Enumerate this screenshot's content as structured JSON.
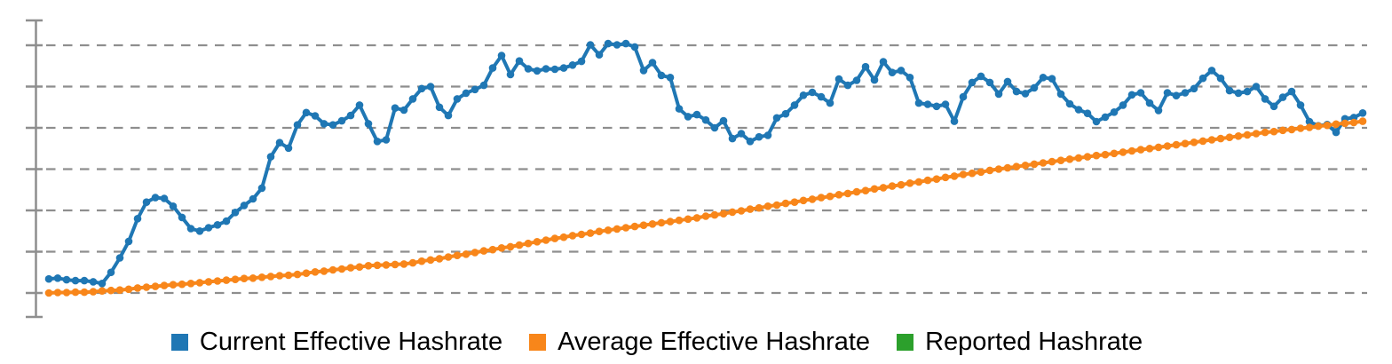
{
  "chart_data": {
    "type": "line",
    "title": "",
    "x_axis": {
      "tick_labels": [],
      "labels_visible": false
    },
    "y_axis": {
      "tick_labels": [],
      "labels_visible": false,
      "gridline_values": [
        0,
        1,
        2,
        3,
        4,
        5,
        6
      ],
      "ylim": [
        -0.58,
        6.6
      ],
      "note": "axis shows only ticks, no numeric labels; series values are in gridline units measured from the bottom dashed gridline"
    },
    "grid": {
      "style": "dashed",
      "color": "#8e8e8e",
      "horizontal_lines": 7
    },
    "legend_position": "bottom-center",
    "marker": "circle",
    "series": [
      {
        "name": "Current Effective Hashrate",
        "color": "#1f77b4",
        "visible": true,
        "values": [
          0.34,
          0.36,
          0.32,
          0.3,
          0.3,
          0.27,
          0.23,
          0.5,
          0.85,
          1.25,
          1.8,
          2.2,
          2.31,
          2.29,
          2.1,
          1.83,
          1.56,
          1.5,
          1.58,
          1.65,
          1.74,
          1.95,
          2.12,
          2.28,
          2.54,
          3.3,
          3.64,
          3.51,
          4.07,
          4.37,
          4.29,
          4.1,
          4.07,
          4.17,
          4.3,
          4.55,
          4.1,
          3.67,
          3.71,
          4.48,
          4.43,
          4.7,
          4.95,
          5.0,
          4.5,
          4.3,
          4.7,
          4.84,
          4.93,
          5.03,
          5.45,
          5.75,
          5.29,
          5.62,
          5.43,
          5.38,
          5.43,
          5.42,
          5.45,
          5.52,
          5.61,
          6.01,
          5.77,
          6.04,
          6.01,
          6.04,
          5.96,
          5.39,
          5.58,
          5.27,
          5.22,
          4.46,
          4.27,
          4.32,
          4.19,
          4.0,
          4.17,
          3.74,
          3.86,
          3.67,
          3.78,
          3.82,
          4.24,
          4.34,
          4.55,
          4.79,
          4.86,
          4.75,
          4.6,
          5.18,
          5.03,
          5.15,
          5.48,
          5.16,
          5.6,
          5.34,
          5.39,
          5.22,
          4.6,
          4.57,
          4.52,
          4.57,
          4.16,
          4.75,
          5.1,
          5.25,
          5.1,
          4.82,
          5.12,
          4.88,
          4.83,
          4.97,
          5.22,
          5.19,
          4.82,
          4.58,
          4.44,
          4.35,
          4.15,
          4.26,
          4.38,
          4.55,
          4.8,
          4.85,
          4.6,
          4.42,
          4.85,
          4.78,
          4.85,
          4.95,
          5.2,
          5.39,
          5.2,
          4.9,
          4.84,
          4.88,
          5.0,
          4.7,
          4.52,
          4.74,
          4.88,
          4.55,
          4.15,
          4.05,
          4.08,
          3.89,
          4.22,
          4.25,
          4.36
        ]
      },
      {
        "name": "Average Effective Hashrate",
        "color": "#f8861a",
        "visible": true,
        "values": [
          0.0,
          0.01,
          0.01,
          0.02,
          0.02,
          0.03,
          0.05,
          0.06,
          0.07,
          0.09,
          0.12,
          0.14,
          0.16,
          0.18,
          0.2,
          0.21,
          0.23,
          0.25,
          0.27,
          0.29,
          0.31,
          0.33,
          0.35,
          0.36,
          0.38,
          0.4,
          0.42,
          0.43,
          0.45,
          0.48,
          0.51,
          0.53,
          0.56,
          0.58,
          0.61,
          0.63,
          0.66,
          0.67,
          0.68,
          0.69,
          0.7,
          0.73,
          0.77,
          0.8,
          0.83,
          0.87,
          0.91,
          0.94,
          0.98,
          1.02,
          1.05,
          1.09,
          1.12,
          1.16,
          1.2,
          1.24,
          1.28,
          1.32,
          1.35,
          1.39,
          1.42,
          1.45,
          1.49,
          1.52,
          1.55,
          1.58,
          1.61,
          1.64,
          1.67,
          1.7,
          1.73,
          1.76,
          1.79,
          1.82,
          1.86,
          1.89,
          1.92,
          1.96,
          1.99,
          2.03,
          2.06,
          2.1,
          2.13,
          2.17,
          2.2,
          2.24,
          2.27,
          2.31,
          2.34,
          2.38,
          2.41,
          2.45,
          2.48,
          2.52,
          2.55,
          2.59,
          2.62,
          2.66,
          2.69,
          2.73,
          2.76,
          2.8,
          2.83,
          2.87,
          2.9,
          2.93,
          2.97,
          3.0,
          3.03,
          3.06,
          3.09,
          3.12,
          3.15,
          3.18,
          3.21,
          3.24,
          3.27,
          3.3,
          3.33,
          3.35,
          3.38,
          3.41,
          3.44,
          3.47,
          3.5,
          3.53,
          3.56,
          3.59,
          3.62,
          3.65,
          3.68,
          3.71,
          3.74,
          3.77,
          3.8,
          3.83,
          3.86,
          3.89,
          3.91,
          3.94,
          3.96,
          3.99,
          4.01,
          4.04,
          4.06,
          4.09,
          4.11,
          4.13,
          4.16
        ]
      },
      {
        "name": "Reported Hashrate",
        "color": "#2ca02c",
        "visible": false,
        "values": []
      }
    ]
  }
}
